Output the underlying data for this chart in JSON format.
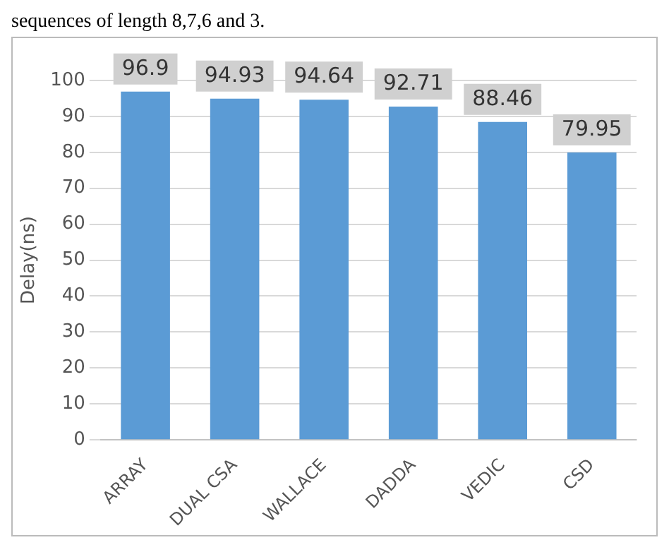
{
  "chart_data": {
    "type": "bar",
    "ylabel": "Delay(ns)",
    "annotations": [
      "sequences of length 8,7,6 and 3."
    ],
    "categories": [
      "ARRAY",
      "DUAL CSA",
      "WALLACE",
      "DADDA",
      "VEDIC",
      "CSD"
    ],
    "values": [
      96.9,
      94.93,
      94.64,
      92.71,
      88.46,
      79.95
    ],
    "color": "#5b9bd5",
    "ylim": [
      0,
      100
    ],
    "yticks": [
      0,
      10,
      20,
      30,
      40,
      50,
      60,
      70,
      80,
      90,
      100
    ],
    "grid": "y",
    "data_labels": true
  }
}
